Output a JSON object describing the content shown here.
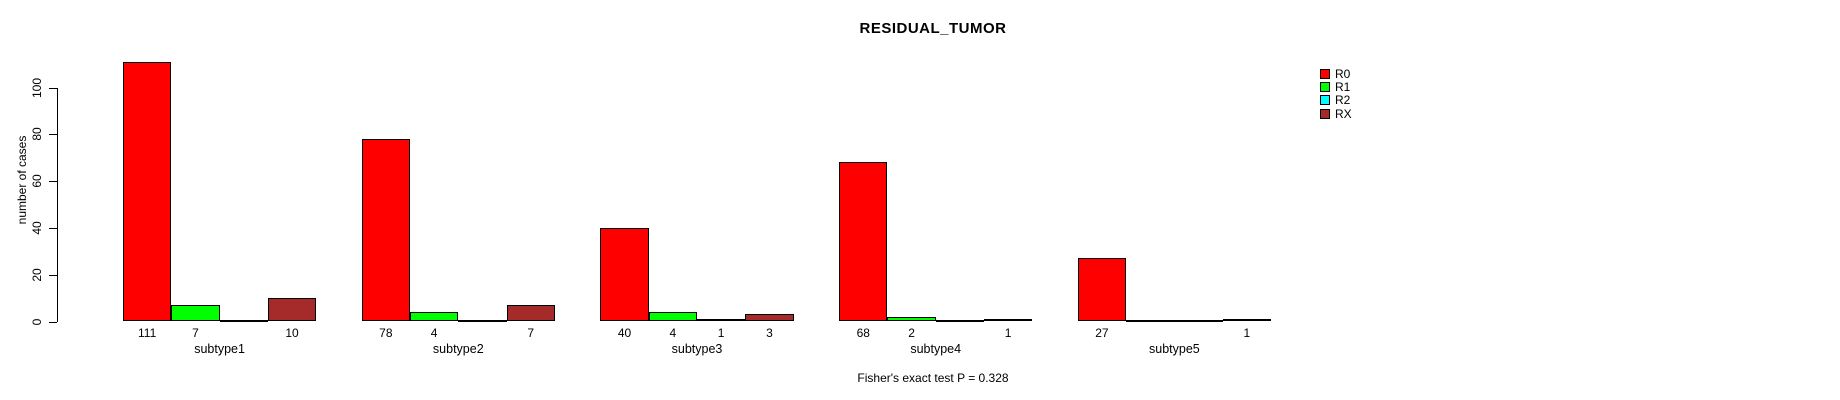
{
  "title": "RESIDUAL_TUMOR",
  "ylabel": "number of cases",
  "footer": "Fisher's exact test P = 0.328",
  "legend": {
    "position": "top-right",
    "entries": [
      {
        "label": "R0",
        "color": "#FF0000"
      },
      {
        "label": "R1",
        "color": "#00FF00"
      },
      {
        "label": "R2",
        "color": "#00FFFF"
      },
      {
        "label": "RX",
        "color": "#A52A2A"
      }
    ]
  },
  "chart_data": {
    "type": "bar",
    "title": "RESIDUAL_TUMOR",
    "xlabel": "",
    "ylabel": "number of cases",
    "categories": [
      "subtype1",
      "subtype2",
      "subtype3",
      "subtype4",
      "subtype5"
    ],
    "series": [
      {
        "name": "R0",
        "color": "#FF0000",
        "values": [
          111,
          78,
          40,
          68,
          27
        ]
      },
      {
        "name": "R1",
        "color": "#00FF00",
        "values": [
          7,
          4,
          4,
          2,
          0
        ]
      },
      {
        "name": "R2",
        "color": "#00FFFF",
        "values": [
          0,
          0,
          1,
          0,
          0
        ]
      },
      {
        "name": "RX",
        "color": "#A52A2A",
        "values": [
          10,
          7,
          3,
          1,
          1
        ]
      }
    ],
    "bar_count_labels": [
      [
        "111",
        "7",
        "",
        "10"
      ],
      [
        "78",
        "4",
        "",
        "7"
      ],
      [
        "40",
        "4",
        "1",
        "3"
      ],
      [
        "68",
        "2",
        "",
        "1"
      ],
      [
        "27",
        "",
        "",
        "1"
      ]
    ],
    "ylim": [
      0,
      113
    ],
    "yticks": [
      0,
      20,
      40,
      60,
      80,
      100
    ],
    "grid": false,
    "legend_position": "top-right",
    "annotation": "Fisher's exact test P = 0.328",
    "zero_bars_drawn_as_baseline_segments": true
  }
}
